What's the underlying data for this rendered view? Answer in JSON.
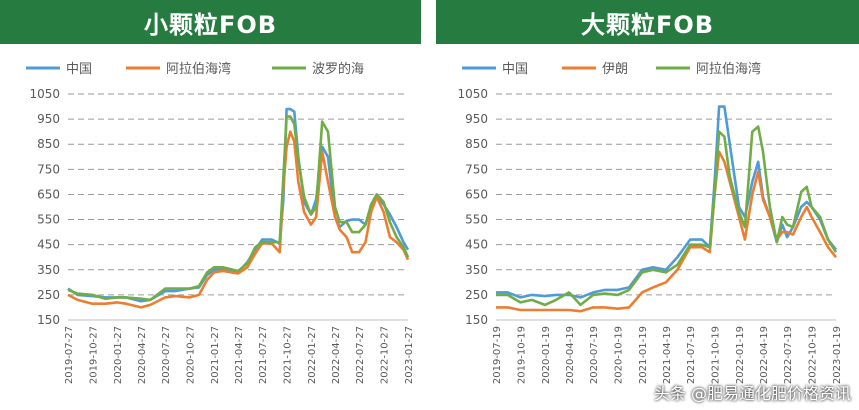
{
  "watermark": "头条 @肥易通化肥价格资讯",
  "chart_data": [
    {
      "type": "line",
      "title": "小颗粒FOB",
      "ylim": [
        150,
        1050
      ],
      "yticks": [
        150,
        250,
        350,
        450,
        550,
        650,
        750,
        850,
        950,
        1050
      ],
      "xticks": [
        "2019-07-27",
        "2019-10-27",
        "2020-01-27",
        "2020-04-27",
        "2020-07-27",
        "2020-10-27",
        "2021-01-27",
        "2021-04-27",
        "2021-07-27",
        "2021-10-27",
        "2022-01-27",
        "2022-04-27",
        "2022-07-27",
        "2022-10-27",
        "2023-01-27"
      ],
      "grid": "horizontal dashed",
      "legend_position": "top",
      "series": [
        {
          "name": "中国",
          "color": "#4f9bd9",
          "x": [
            "2019-07-27",
            "2019-09-01",
            "2019-10-27",
            "2019-12-15",
            "2020-01-27",
            "2020-03-01",
            "2020-04-27",
            "2020-06-01",
            "2020-07-27",
            "2020-09-01",
            "2020-10-27",
            "2020-12-01",
            "2021-01-01",
            "2021-01-27",
            "2021-03-01",
            "2021-04-27",
            "2021-06-01",
            "2021-07-01",
            "2021-07-27",
            "2021-09-01",
            "2021-10-01",
            "2021-10-15",
            "2021-10-27",
            "2021-11-10",
            "2021-11-25",
            "2021-12-10",
            "2022-01-01",
            "2022-01-27",
            "2022-02-15",
            "2022-03-10",
            "2022-04-01",
            "2022-04-27",
            "2022-05-15",
            "2022-06-10",
            "2022-07-01",
            "2022-07-27",
            "2022-08-20",
            "2022-09-10",
            "2022-10-01",
            "2022-10-27",
            "2022-11-20",
            "2022-12-15",
            "2023-01-10",
            "2023-01-27"
          ],
          "values": [
            275,
            250,
            245,
            240,
            240,
            240,
            225,
            230,
            265,
            265,
            275,
            280,
            330,
            350,
            350,
            340,
            380,
            430,
            470,
            470,
            455,
            630,
            990,
            990,
            980,
            800,
            620,
            570,
            630,
            840,
            800,
            560,
            520,
            545,
            550,
            550,
            530,
            600,
            640,
            610,
            570,
            520,
            460,
            430
          ]
        },
        {
          "name": "阿拉伯海湾",
          "color": "#ed7d31",
          "x": [
            "2019-07-27",
            "2019-09-01",
            "2019-10-27",
            "2019-12-15",
            "2020-01-27",
            "2020-03-01",
            "2020-04-27",
            "2020-06-01",
            "2020-07-27",
            "2020-09-01",
            "2020-10-27",
            "2020-12-01",
            "2021-01-01",
            "2021-01-27",
            "2021-03-01",
            "2021-04-27",
            "2021-06-01",
            "2021-07-01",
            "2021-07-27",
            "2021-09-01",
            "2021-10-01",
            "2021-10-15",
            "2021-10-27",
            "2021-11-10",
            "2021-11-25",
            "2021-12-10",
            "2022-01-01",
            "2022-01-27",
            "2022-02-15",
            "2022-03-10",
            "2022-04-01",
            "2022-04-27",
            "2022-05-15",
            "2022-06-10",
            "2022-07-01",
            "2022-07-27",
            "2022-08-20",
            "2022-09-10",
            "2022-10-01",
            "2022-10-27",
            "2022-11-20",
            "2022-12-15",
            "2023-01-10",
            "2023-01-27"
          ],
          "values": [
            250,
            230,
            215,
            215,
            220,
            215,
            200,
            210,
            240,
            245,
            240,
            250,
            310,
            340,
            345,
            335,
            360,
            415,
            455,
            455,
            420,
            680,
            840,
            900,
            860,
            700,
            580,
            530,
            560,
            820,
            700,
            560,
            510,
            480,
            420,
            420,
            460,
            580,
            640,
            580,
            480,
            460,
            430,
            390
          ]
        },
        {
          "name": "波罗的海",
          "color": "#70ad47",
          "x": [
            "2019-07-27",
            "2019-09-01",
            "2019-10-27",
            "2019-12-15",
            "2020-01-27",
            "2020-03-01",
            "2020-04-27",
            "2020-06-01",
            "2020-07-27",
            "2020-09-01",
            "2020-10-27",
            "2020-12-01",
            "2021-01-01",
            "2021-01-27",
            "2021-03-01",
            "2021-04-27",
            "2021-06-01",
            "2021-07-01",
            "2021-07-27",
            "2021-09-01",
            "2021-10-01",
            "2021-10-15",
            "2021-10-27",
            "2021-11-10",
            "2021-11-25",
            "2021-12-10",
            "2022-01-01",
            "2022-01-27",
            "2022-02-15",
            "2022-03-10",
            "2022-04-01",
            "2022-04-27",
            "2022-05-15",
            "2022-06-10",
            "2022-07-01",
            "2022-07-27",
            "2022-08-20",
            "2022-09-10",
            "2022-10-01",
            "2022-10-27",
            "2022-11-20",
            "2022-12-15",
            "2023-01-10",
            "2023-01-27"
          ],
          "values": [
            270,
            255,
            250,
            235,
            240,
            240,
            235,
            230,
            275,
            275,
            275,
            285,
            340,
            360,
            360,
            345,
            375,
            440,
            460,
            460,
            460,
            720,
            960,
            960,
            930,
            790,
            640,
            570,
            600,
            940,
            900,
            600,
            540,
            540,
            500,
            500,
            530,
            610,
            650,
            620,
            540,
            480,
            440,
            400
          ]
        }
      ]
    },
    {
      "type": "line",
      "title": "大颗粒FOB",
      "ylim": [
        150,
        1050
      ],
      "yticks": [
        150,
        250,
        350,
        450,
        550,
        650,
        750,
        850,
        950,
        1050
      ],
      "xticks": [
        "2019-07-19",
        "2019-10-19",
        "2020-01-19",
        "2020-04-19",
        "2020-07-19",
        "2020-10-19",
        "2021-01-19",
        "2021-04-19",
        "2021-07-19",
        "2021-10-19",
        "2022-01-19",
        "2022-04-19",
        "2022-07-19",
        "2022-10-19",
        "2023-01-19"
      ],
      "grid": "horizontal dashed",
      "legend_position": "top",
      "series": [
        {
          "name": "中国",
          "color": "#4f9bd9",
          "x": [
            "2019-07-19",
            "2019-09-01",
            "2019-10-19",
            "2019-12-01",
            "2020-01-19",
            "2020-03-01",
            "2020-04-19",
            "2020-06-01",
            "2020-07-19",
            "2020-09-01",
            "2020-10-19",
            "2020-12-01",
            "2021-01-19",
            "2021-03-01",
            "2021-04-19",
            "2021-06-01",
            "2021-07-19",
            "2021-09-01",
            "2021-10-01",
            "2021-10-19",
            "2021-11-05",
            "2021-11-25",
            "2021-12-15",
            "2022-01-19",
            "2022-02-10",
            "2022-03-10",
            "2022-04-01",
            "2022-04-19",
            "2022-05-15",
            "2022-06-10",
            "2022-07-01",
            "2022-07-19",
            "2022-08-10",
            "2022-09-10",
            "2022-10-01",
            "2022-10-19",
            "2022-11-20",
            "2022-12-20",
            "2023-01-19"
          ],
          "values": [
            260,
            260,
            240,
            250,
            245,
            250,
            250,
            240,
            260,
            270,
            270,
            280,
            350,
            360,
            350,
            400,
            470,
            470,
            440,
            700,
            1000,
            1000,
            850,
            600,
            560,
            700,
            780,
            640,
            560,
            460,
            530,
            480,
            520,
            600,
            620,
            600,
            550,
            470,
            430
          ]
        },
        {
          "name": "伊朗",
          "color": "#ed7d31",
          "x": [
            "2019-07-19",
            "2019-09-01",
            "2019-10-19",
            "2019-12-01",
            "2020-01-19",
            "2020-03-01",
            "2020-04-19",
            "2020-06-01",
            "2020-07-19",
            "2020-09-01",
            "2020-10-19",
            "2020-12-01",
            "2021-01-19",
            "2021-03-01",
            "2021-04-19",
            "2021-06-01",
            "2021-07-19",
            "2021-09-01",
            "2021-10-01",
            "2021-10-19",
            "2021-11-05",
            "2021-11-25",
            "2021-12-15",
            "2022-01-19",
            "2022-02-10",
            "2022-03-10",
            "2022-04-01",
            "2022-04-19",
            "2022-05-15",
            "2022-06-10",
            "2022-07-01",
            "2022-07-19",
            "2022-08-10",
            "2022-09-10",
            "2022-10-01",
            "2022-10-19",
            "2022-11-20",
            "2022-12-20",
            "2023-01-19"
          ],
          "values": [
            200,
            200,
            190,
            190,
            190,
            190,
            190,
            185,
            200,
            200,
            195,
            200,
            260,
            280,
            300,
            350,
            440,
            440,
            420,
            650,
            820,
            780,
            700,
            560,
            470,
            650,
            740,
            630,
            560,
            470,
            500,
            500,
            490,
            560,
            600,
            560,
            500,
            440,
            400
          ]
        },
        {
          "name": "阿拉伯海湾",
          "color": "#70ad47",
          "x": [
            "2019-07-19",
            "2019-09-01",
            "2019-10-19",
            "2019-12-01",
            "2020-01-19",
            "2020-03-01",
            "2020-04-19",
            "2020-06-01",
            "2020-07-19",
            "2020-09-01",
            "2020-10-19",
            "2020-12-01",
            "2021-01-19",
            "2021-03-01",
            "2021-04-19",
            "2021-06-01",
            "2021-07-19",
            "2021-09-01",
            "2021-10-01",
            "2021-10-19",
            "2021-11-05",
            "2021-11-25",
            "2021-12-15",
            "2022-01-19",
            "2022-02-10",
            "2022-03-10",
            "2022-04-01",
            "2022-04-19",
            "2022-05-15",
            "2022-06-10",
            "2022-07-01",
            "2022-07-19",
            "2022-08-10",
            "2022-09-10",
            "2022-10-01",
            "2022-10-19",
            "2022-11-20",
            "2022-12-20",
            "2023-01-19"
          ],
          "values": [
            250,
            250,
            220,
            230,
            210,
            230,
            260,
            210,
            250,
            255,
            250,
            270,
            340,
            350,
            340,
            370,
            450,
            450,
            440,
            650,
            900,
            880,
            720,
            580,
            520,
            900,
            920,
            820,
            600,
            460,
            560,
            530,
            520,
            660,
            680,
            600,
            560,
            470,
            420
          ]
        }
      ]
    }
  ]
}
